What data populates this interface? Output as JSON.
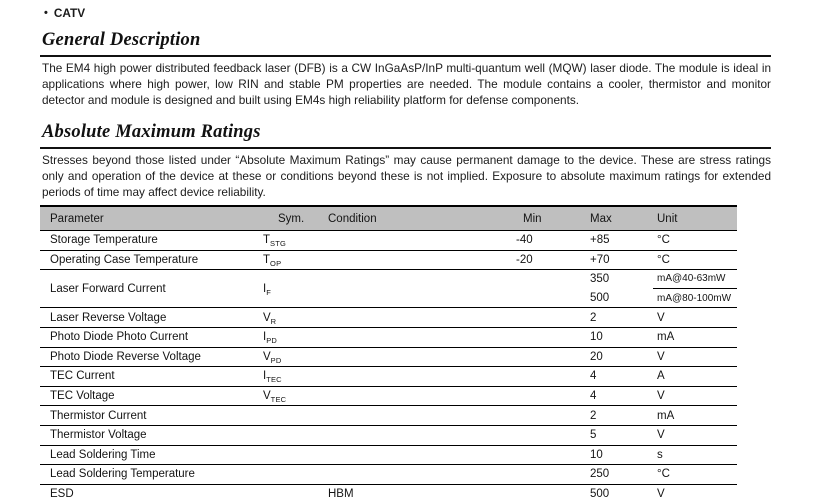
{
  "page": {
    "bullet_glyph": "•",
    "bullet_item": "CATV"
  },
  "sections": {
    "general_description": {
      "title": "General Description",
      "body": "The EM4 high power distributed feedback laser (DFB) is a CW InGaAsP/InP multi-quantum well (MQW) laser diode. The module is ideal in applications where high power, low RIN and stable PM properties are needed. The module contains a cooler, thermistor and monitor detector and module is designed and built using EM4s high reliability platform for defense components."
    },
    "absolute_maximum_ratings": {
      "title": "Absolute Maximum Ratings",
      "body": "Stresses beyond those listed under “Absolute Maximum Ratings” may cause permanent damage to the device. These are stress ratings only and operation of the device at these or conditions beyond these is not implied. Exposure to absolute maximum ratings for extended periods of time may affect device reliability."
    }
  },
  "table": {
    "header_bg": "#bfbfbf",
    "headers": [
      "Parameter",
      "Sym.",
      "Condition",
      "Min",
      "Max",
      "Unit"
    ],
    "rows": [
      {
        "param": "Storage Temperature",
        "sym": "T",
        "sub": "STG",
        "cond": "",
        "min": "-40",
        "max": "+85",
        "unit": "°C"
      },
      {
        "param": "Operating Case Temperature",
        "sym": "T",
        "sub": "OP",
        "cond": "",
        "min": "-20",
        "max": "+70",
        "unit": "°C"
      },
      {
        "param": "Laser Forward Current",
        "sym": "I",
        "sub": "F",
        "cond": "",
        "min": "",
        "split": [
          {
            "max": "350",
            "unit": "mA@40-63mW"
          },
          {
            "max": "500",
            "unit": "mA@80-100mW"
          }
        ]
      },
      {
        "param": "Laser Reverse Voltage",
        "sym": "V",
        "sub": "R",
        "cond": "",
        "min": "",
        "max": "2",
        "unit": "V"
      },
      {
        "param": "Photo Diode Photo Current",
        "sym": "I",
        "sub": "PD",
        "cond": "",
        "min": "",
        "max": "10",
        "unit": "mA"
      },
      {
        "param": "Photo Diode Reverse Voltage",
        "sym": "V",
        "sub": "PD",
        "cond": "",
        "min": "",
        "max": "20",
        "unit": "V"
      },
      {
        "param": "TEC Current",
        "sym": "I",
        "sub": "TEC",
        "cond": "",
        "min": "",
        "max": "4",
        "unit": "A"
      },
      {
        "param": "TEC Voltage",
        "sym": "V",
        "sub": "TEC",
        "cond": "",
        "min": "",
        "max": "4",
        "unit": "V"
      },
      {
        "param": "Thermistor Current",
        "sym": "",
        "sub": "",
        "cond": "",
        "min": "",
        "max": "2",
        "unit": "mA"
      },
      {
        "param": "Thermistor Voltage",
        "sym": "",
        "sub": "",
        "cond": "",
        "min": "",
        "max": "5",
        "unit": "V"
      },
      {
        "param": "Lead Soldering Time",
        "sym": "",
        "sub": "",
        "cond": "",
        "min": "",
        "max": "10",
        "unit": "s"
      },
      {
        "param": "Lead Soldering Temperature",
        "sym": "",
        "sub": "",
        "cond": "",
        "min": "",
        "max": "250",
        "unit": "°C"
      },
      {
        "param": "ESD",
        "sym": "",
        "sub": "",
        "cond": "HBM",
        "min": "",
        "max": "500",
        "unit": "V"
      }
    ]
  }
}
